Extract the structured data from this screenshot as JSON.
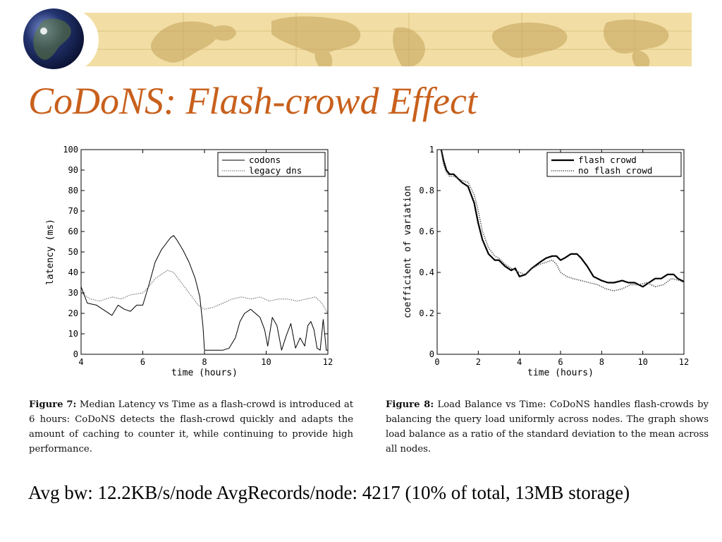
{
  "slide": {
    "title": "CoDoNS: Flash-crowd Effect",
    "footer": "Avg bw: 12.2KB/s/node AvgRecords/node: 4217 (10% of total, 13MB storage)"
  },
  "colors": {
    "title": "#c8601c",
    "banner_bg": "#f2dea4",
    "banner_land": "#d8bc7a",
    "globe_ocean": "#22336e"
  },
  "captions": [
    {
      "label": "Figure 7:",
      "text": "Median Latency vs Time as a flash-crowd is introduced at 6 hours: CoDoNS detects the flash-crowd quickly and adapts the amount of caching to counter it, while continuing to provide high performance."
    },
    {
      "label": "Figure 8:",
      "text": "Load Balance vs Time: CoDoNS handles flash-crowds by balancing the query load uniformly across nodes. The graph shows load balance as a ratio of the standard deviation to the mean across all nodes."
    }
  ],
  "chart_data": [
    {
      "type": "line",
      "xlabel": "time (hours)",
      "ylabel": "latency (ms)",
      "xlim": [
        4,
        12
      ],
      "ylim": [
        0,
        100
      ],
      "xticks": [
        4,
        6,
        8,
        10,
        12
      ],
      "yticks": [
        0,
        10,
        20,
        30,
        40,
        50,
        60,
        70,
        80,
        90,
        100
      ],
      "grid": false,
      "legend_position": "top-right",
      "series": [
        {
          "name": "codons",
          "style": "solid",
          "x": [
            4,
            4.2,
            4.5,
            4.8,
            5,
            5.2,
            5.4,
            5.6,
            5.8,
            6,
            6.2,
            6.4,
            6.6,
            6.8,
            6.9,
            7,
            7.1,
            7.3,
            7.5,
            7.7,
            7.85,
            7.95,
            8,
            8.3,
            8.6,
            8.8,
            9,
            9.15,
            9.3,
            9.5,
            9.65,
            9.8,
            9.95,
            10.05,
            10.2,
            10.35,
            10.5,
            10.65,
            10.8,
            10.95,
            11.1,
            11.25,
            11.35,
            11.45,
            11.55,
            11.65,
            11.75,
            11.85,
            11.95,
            12
          ],
          "y": [
            33,
            25,
            24,
            21,
            19,
            24,
            22,
            21,
            24,
            24,
            34,
            45,
            51,
            55,
            57,
            58,
            56,
            51,
            45,
            37,
            28,
            14,
            2,
            2,
            2,
            3,
            8,
            16,
            20,
            22,
            20,
            18,
            12,
            4,
            18,
            14,
            2,
            9,
            15,
            3,
            8,
            4,
            14,
            16,
            12,
            3,
            2,
            17,
            2,
            2
          ]
        },
        {
          "name": "legacy dns",
          "style": "dotted",
          "x": [
            4,
            4.3,
            4.6,
            5,
            5.3,
            5.6,
            6,
            6.2,
            6.4,
            6.6,
            6.8,
            7,
            7.2,
            7.4,
            7.6,
            7.8,
            8,
            8.3,
            8.6,
            8.9,
            9.2,
            9.5,
            9.8,
            10.1,
            10.4,
            10.7,
            11,
            11.3,
            11.6,
            11.8,
            12
          ],
          "y": [
            30,
            27,
            26,
            28,
            27,
            29,
            30,
            33,
            37,
            39,
            41,
            40,
            36,
            32,
            28,
            24,
            22,
            23,
            25,
            27,
            28,
            27,
            28,
            26,
            27,
            27,
            26,
            27,
            28,
            25,
            20
          ]
        }
      ]
    },
    {
      "type": "line",
      "xlabel": "time (hours)",
      "ylabel": "coefficient of variation",
      "xlim": [
        0,
        12
      ],
      "ylim": [
        0,
        1
      ],
      "xticks": [
        0,
        2,
        4,
        6,
        8,
        10,
        12
      ],
      "yticks": [
        0,
        0.2,
        0.4,
        0.6,
        0.8,
        1
      ],
      "grid": false,
      "legend_position": "top-right",
      "series": [
        {
          "name": "flash crowd",
          "style": "solid",
          "x": [
            0.2,
            0.3,
            0.45,
            0.6,
            0.8,
            1,
            1.2,
            1.5,
            1.8,
            2,
            2.2,
            2.5,
            2.8,
            3,
            3.3,
            3.6,
            3.8,
            4,
            4.3,
            4.6,
            5,
            5.3,
            5.6,
            5.8,
            6,
            6.2,
            6.5,
            6.8,
            7,
            7.3,
            7.6,
            8,
            8.3,
            8.6,
            9,
            9.3,
            9.6,
            10,
            10.3,
            10.6,
            10.9,
            11.2,
            11.5,
            11.7,
            11.9,
            12
          ],
          "y": [
            1,
            0.95,
            0.9,
            0.88,
            0.88,
            0.86,
            0.84,
            0.82,
            0.74,
            0.64,
            0.56,
            0.49,
            0.46,
            0.46,
            0.43,
            0.41,
            0.42,
            0.38,
            0.39,
            0.42,
            0.45,
            0.47,
            0.48,
            0.48,
            0.46,
            0.47,
            0.49,
            0.49,
            0.47,
            0.43,
            0.38,
            0.36,
            0.35,
            0.35,
            0.36,
            0.35,
            0.35,
            0.33,
            0.35,
            0.37,
            0.37,
            0.39,
            0.39,
            0.37,
            0.36,
            0.355
          ]
        },
        {
          "name": "no flash crowd",
          "style": "dotted",
          "x": [
            0.2,
            0.3,
            0.45,
            0.6,
            0.8,
            1,
            1.2,
            1.5,
            1.8,
            2,
            2.2,
            2.5,
            2.8,
            3,
            3.3,
            3.6,
            4,
            4.3,
            4.6,
            5,
            5.3,
            5.6,
            5.8,
            6,
            6.3,
            6.6,
            7,
            7.4,
            7.8,
            8.2,
            8.6,
            9,
            9.4,
            9.8,
            10.2,
            10.6,
            11,
            11.4,
            11.8,
            12
          ],
          "y": [
            1,
            0.93,
            0.89,
            0.87,
            0.87,
            0.86,
            0.85,
            0.84,
            0.78,
            0.7,
            0.6,
            0.52,
            0.48,
            0.47,
            0.44,
            0.42,
            0.4,
            0.39,
            0.42,
            0.44,
            0.45,
            0.46,
            0.44,
            0.4,
            0.38,
            0.37,
            0.36,
            0.35,
            0.34,
            0.32,
            0.31,
            0.32,
            0.34,
            0.34,
            0.35,
            0.33,
            0.34,
            0.37,
            0.36,
            0.35
          ]
        }
      ]
    }
  ]
}
